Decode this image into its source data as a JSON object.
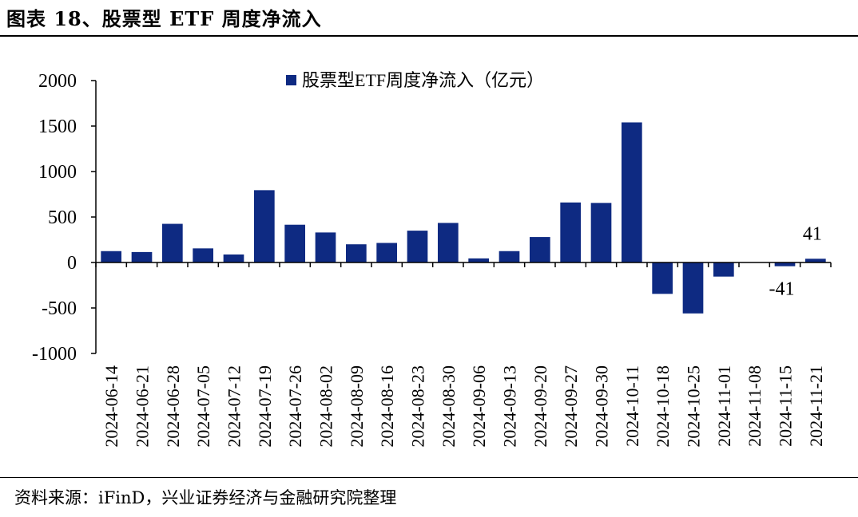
{
  "title": "图表 18、股票型 ETF 周度净流入",
  "source": "资料来源：iFinD，兴业证券经济与金融研究院整理",
  "colors": {
    "bar": "#0E2A82",
    "axis": "#000000"
  },
  "chart_data": {
    "type": "bar",
    "categories": [
      "2024-06-14",
      "2024-06-21",
      "2024-06-28",
      "2024-07-05",
      "2024-07-12",
      "2024-07-19",
      "2024-07-26",
      "2024-08-02",
      "2024-08-09",
      "2024-08-16",
      "2024-08-23",
      "2024-08-30",
      "2024-09-06",
      "2024-09-13",
      "2024-09-20",
      "2024-09-27",
      "2024-09-30",
      "2024-10-11",
      "2024-10-18",
      "2024-10-25",
      "2024-11-01",
      "2024-11-08",
      "2024-11-15",
      "2024-11-21"
    ],
    "series": [
      {
        "name": "股票型ETF周度净流入（亿元）",
        "values": [
          125,
          115,
          425,
          155,
          88,
          795,
          415,
          330,
          200,
          215,
          350,
          435,
          45,
          125,
          280,
          660,
          655,
          1540,
          -345,
          -560,
          -155,
          0,
          -41,
          41
        ]
      }
    ],
    "data_labels": [
      {
        "category": "2024-11-15",
        "text": "-41"
      },
      {
        "category": "2024-11-21",
        "text": "41"
      }
    ],
    "ylim": [
      -1000,
      2000
    ],
    "yticks": [
      2000,
      1500,
      1000,
      500,
      0,
      -500,
      -1000
    ],
    "xlabel": "",
    "ylabel": "",
    "legend_position": "top",
    "grid": false
  }
}
